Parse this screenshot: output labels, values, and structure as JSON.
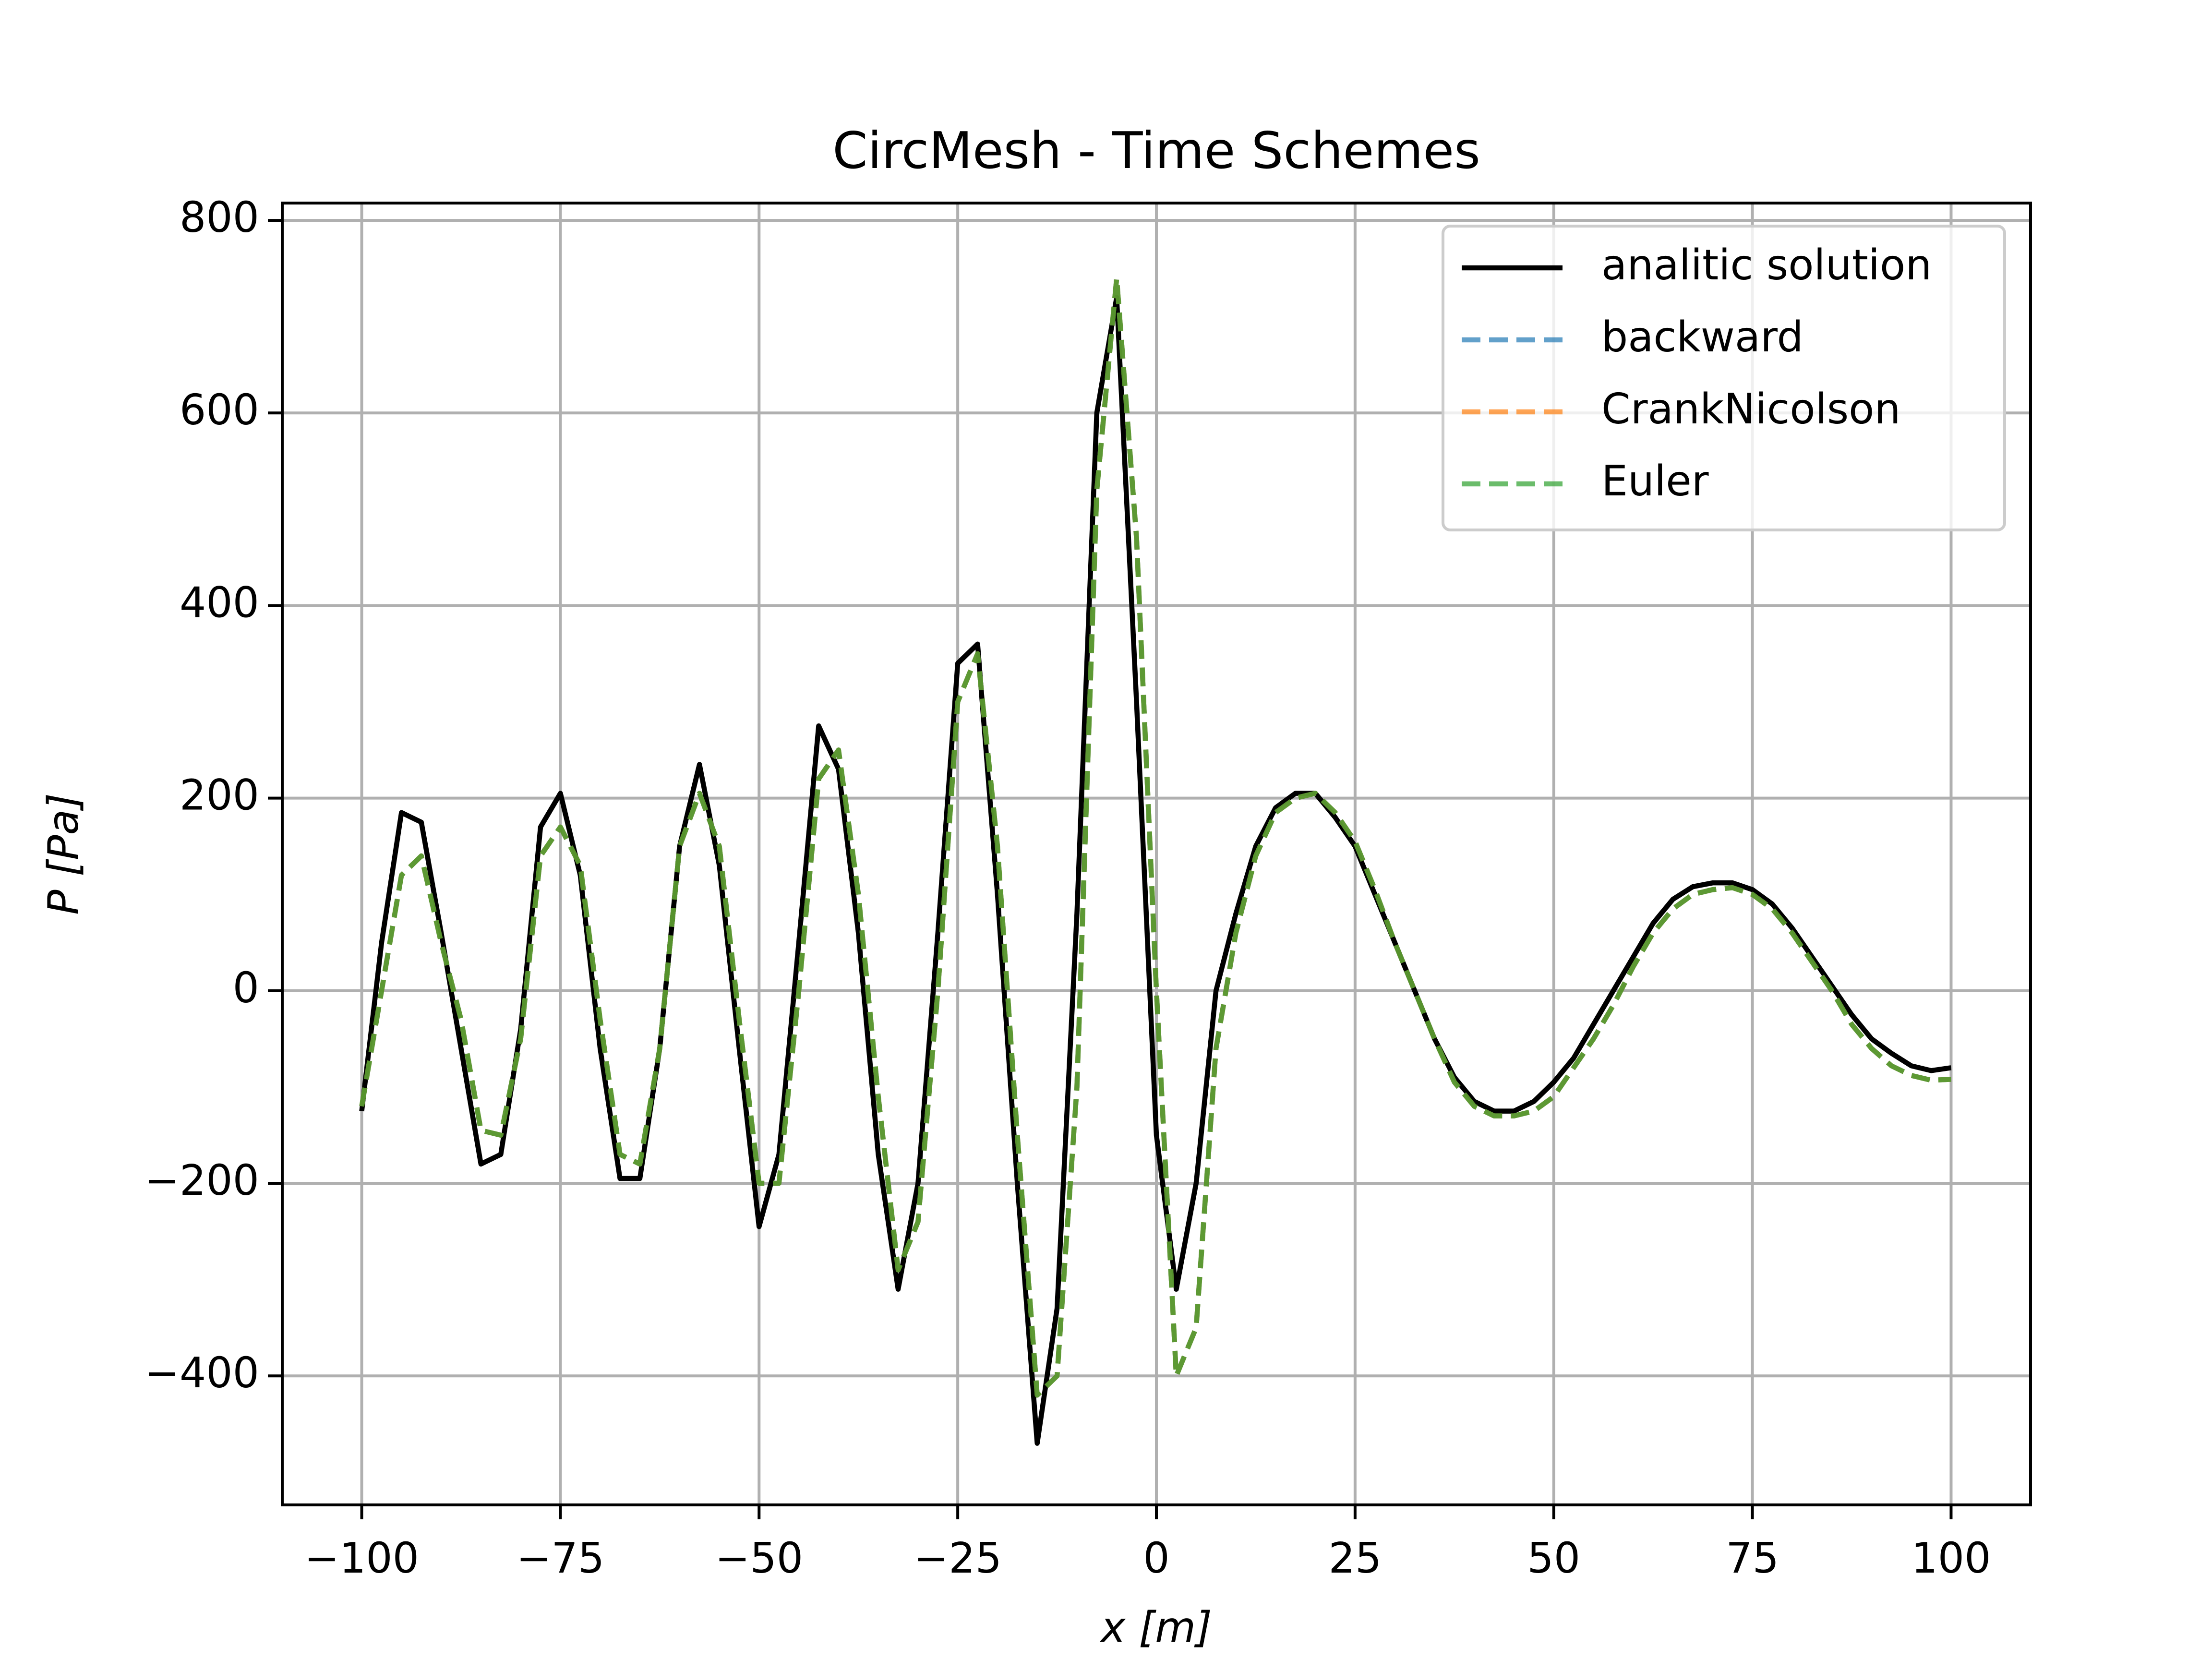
{
  "chart_data": {
    "type": "line",
    "title": "CircMesh - Time Schemes",
    "x_label": "x [m]",
    "y_label": "P [Pa]",
    "x": [
      -100,
      -97.5,
      -95,
      -92.5,
      -90,
      -87.5,
      -85,
      -82.5,
      -80,
      -77.5,
      -75,
      -72.5,
      -70,
      -67.5,
      -65,
      -62.5,
      -60,
      -57.5,
      -55,
      -52.5,
      -50,
      -47.5,
      -45,
      -42.5,
      -40,
      -37.5,
      -35,
      -32.5,
      -30,
      -27.5,
      -25,
      -22.5,
      -20,
      -17.5,
      -15,
      -12.5,
      -10,
      -7.5,
      -5,
      -2.5,
      0,
      2.5,
      5,
      7.5,
      10,
      12.5,
      15,
      17.5,
      20,
      22.5,
      25,
      27.5,
      30,
      32.5,
      35,
      37.5,
      40,
      42.5,
      45,
      47.5,
      50,
      52.5,
      55,
      57.5,
      60,
      62.5,
      65,
      67.5,
      70,
      72.5,
      75,
      77.5,
      80,
      82.5,
      85,
      87.5,
      90,
      92.5,
      95,
      97.5,
      100
    ],
    "series": [
      {
        "name": "analitic solution",
        "color": "#000000",
        "dashed": false,
        "opacity": 1,
        "values": [
          -125,
          50,
          185,
          175,
          60,
          -60,
          -180,
          -170,
          -40,
          170,
          205,
          120,
          -60,
          -195,
          -195,
          -60,
          150,
          235,
          130,
          -60,
          -245,
          -170,
          50,
          275,
          230,
          60,
          -170,
          -310,
          -200,
          60,
          340,
          360,
          100,
          -200,
          -470,
          -330,
          80,
          600,
          720,
          300,
          -150,
          -310,
          -200,
          0,
          80,
          150,
          190,
          205,
          205,
          180,
          150,
          100,
          50,
          0,
          -50,
          -90,
          -115,
          -125,
          -125,
          -115,
          -95,
          -70,
          -35,
          0,
          35,
          70,
          95,
          108,
          112,
          112,
          105,
          90,
          65,
          35,
          5,
          -25,
          -50,
          -65,
          -78,
          -83,
          -80
        ]
      },
      {
        "name": "backward",
        "color": "#1f77b4",
        "dashed": true,
        "opacity": 0.7,
        "values": [
          -120,
          0,
          120,
          140,
          50,
          -30,
          -145,
          -150,
          -50,
          140,
          170,
          130,
          -30,
          -170,
          -180,
          -60,
          150,
          205,
          150,
          -30,
          -200,
          -200,
          0,
          220,
          250,
          100,
          -110,
          -290,
          -240,
          0,
          300,
          350,
          150,
          -150,
          -420,
          -400,
          -100,
          520,
          740,
          470,
          0,
          -400,
          -350,
          -60,
          60,
          140,
          185,
          200,
          205,
          185,
          155,
          105,
          50,
          0,
          -50,
          -95,
          -120,
          -130,
          -130,
          -125,
          -110,
          -80,
          -50,
          -15,
          25,
          60,
          85,
          100,
          105,
          107,
          100,
          85,
          60,
          30,
          0,
          -35,
          -60,
          -78,
          -88,
          -93,
          -92
        ]
      },
      {
        "name": "CrankNicolson",
        "color": "#ff7f0e",
        "dashed": true,
        "opacity": 0.7,
        "values": [
          -120,
          0,
          120,
          140,
          50,
          -30,
          -145,
          -150,
          -50,
          140,
          170,
          130,
          -30,
          -170,
          -180,
          -60,
          150,
          205,
          150,
          -30,
          -200,
          -200,
          0,
          220,
          250,
          100,
          -110,
          -290,
          -240,
          0,
          300,
          350,
          150,
          -150,
          -420,
          -400,
          -100,
          520,
          740,
          470,
          0,
          -400,
          -350,
          -60,
          60,
          140,
          185,
          200,
          205,
          185,
          155,
          105,
          50,
          0,
          -50,
          -95,
          -120,
          -130,
          -130,
          -125,
          -110,
          -80,
          -50,
          -15,
          25,
          60,
          85,
          100,
          105,
          107,
          100,
          85,
          60,
          30,
          0,
          -35,
          -60,
          -78,
          -88,
          -93,
          -92
        ]
      },
      {
        "name": "Euler",
        "color": "#2ca02c",
        "dashed": true,
        "opacity": 0.7,
        "values": [
          -120,
          0,
          120,
          140,
          50,
          -30,
          -145,
          -150,
          -50,
          140,
          170,
          130,
          -30,
          -170,
          -180,
          -60,
          150,
          205,
          150,
          -30,
          -200,
          -200,
          0,
          220,
          250,
          100,
          -110,
          -290,
          -240,
          0,
          300,
          350,
          150,
          -150,
          -420,
          -400,
          -100,
          520,
          740,
          470,
          0,
          -400,
          -350,
          -60,
          60,
          140,
          185,
          200,
          205,
          185,
          155,
          105,
          50,
          0,
          -50,
          -95,
          -120,
          -130,
          -130,
          -125,
          -110,
          -80,
          -50,
          -15,
          25,
          60,
          85,
          100,
          105,
          107,
          100,
          85,
          60,
          30,
          0,
          -35,
          -60,
          -78,
          -88,
          -93,
          -92
        ]
      }
    ],
    "xlim": [
      -110,
      110
    ],
    "xticks": [
      {
        "value": -100,
        "label": "−100"
      },
      {
        "value": -75,
        "label": "−75"
      },
      {
        "value": -50,
        "label": "−50"
      },
      {
        "value": -25,
        "label": "−25"
      },
      0,
      25,
      50,
      75,
      100
    ],
    "ylim": [
      -534,
      818
    ],
    "yticks": [
      {
        "value": -400,
        "label": "−400"
      },
      {
        "value": -200,
        "label": "−200"
      },
      0,
      200,
      400,
      600,
      800
    ],
    "grid": true,
    "legend": "upper right"
  }
}
